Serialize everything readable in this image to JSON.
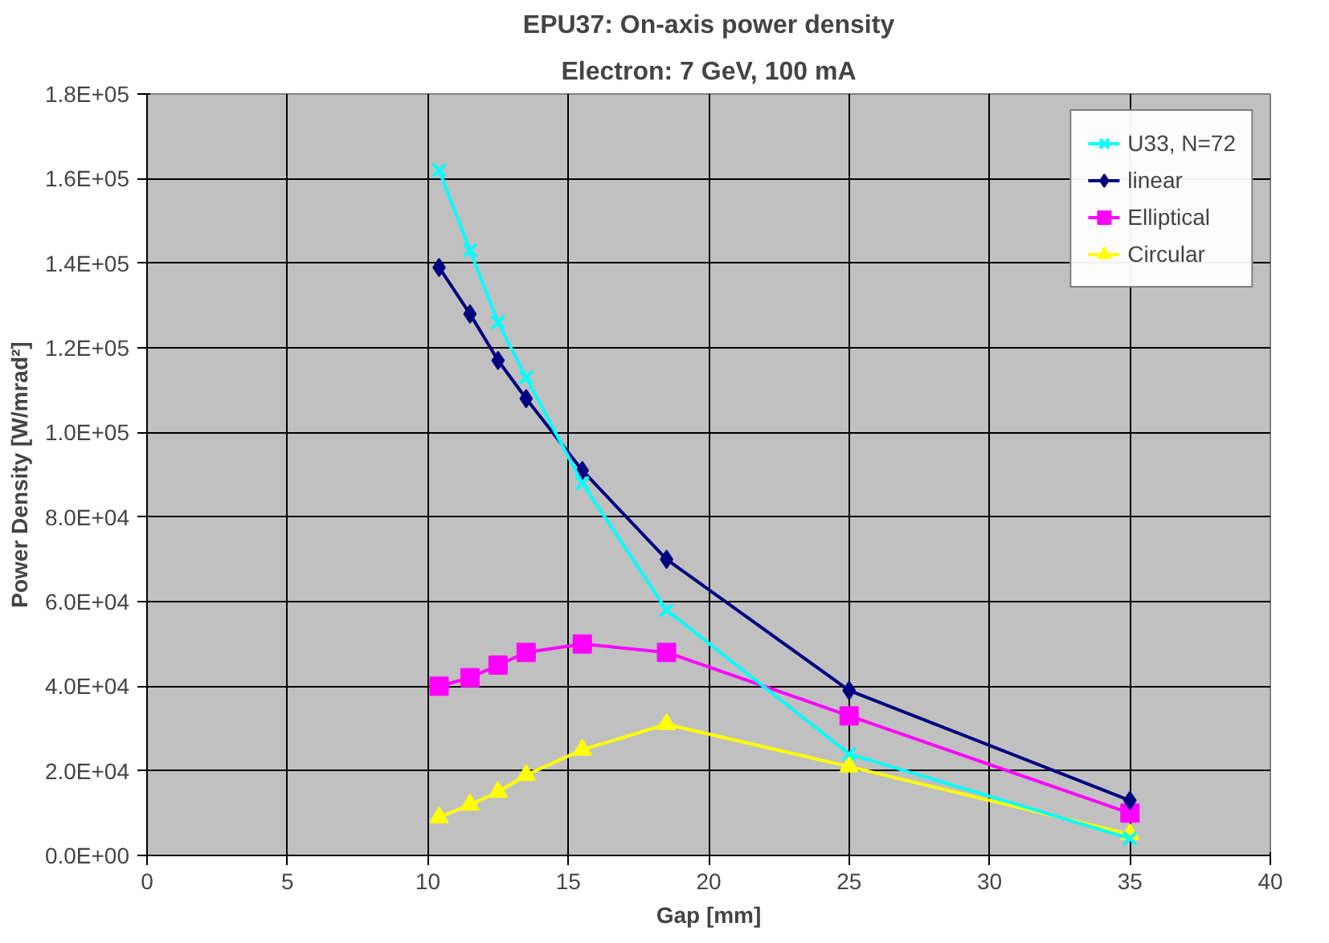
{
  "chart_data": {
    "type": "line",
    "title": "EPU37: On-axis power density",
    "subtitle": "Electron: 7 GeV, 100 mA",
    "xlabel": "Gap [mm]",
    "ylabel": "Power Density [W/mrad²]",
    "x": [
      10.4,
      11.5,
      12.5,
      13.5,
      15.5,
      18.5,
      25,
      35
    ],
    "series": [
      {
        "name": "U33, N=72",
        "color": "#00ffff",
        "marker": "cross",
        "values": [
          162000,
          143000,
          126000,
          113000,
          88000,
          58000,
          24000,
          4000
        ]
      },
      {
        "name": "linear",
        "color": "#000080",
        "marker": "diamond",
        "values": [
          139000,
          128000,
          117000,
          108000,
          91000,
          70000,
          39000,
          13000
        ]
      },
      {
        "name": "Elliptical",
        "color": "#ff00ff",
        "marker": "square",
        "values": [
          40000,
          42000,
          45000,
          48000,
          50000,
          48000,
          33000,
          10000
        ]
      },
      {
        "name": "Circular",
        "color": "#ffff00",
        "marker": "triangle",
        "values": [
          9000,
          12000,
          15000,
          19000,
          25000,
          31000,
          21000,
          5000
        ]
      }
    ],
    "xlim": [
      0,
      40
    ],
    "xticks": [
      0,
      5,
      10,
      15,
      20,
      25,
      30,
      35,
      40
    ],
    "ylim": [
      0,
      180000
    ],
    "yticks": [
      {
        "value": 0,
        "label": "0.0E+00"
      },
      {
        "value": 20000,
        "label": "2.0E+04"
      },
      {
        "value": 40000,
        "label": "4.0E+04"
      },
      {
        "value": 60000,
        "label": "6.0E+04"
      },
      {
        "value": 80000,
        "label": "8.0E+04"
      },
      {
        "value": 100000,
        "label": "1.0E+05"
      },
      {
        "value": 120000,
        "label": "1.2E+05"
      },
      {
        "value": 140000,
        "label": "1.4E+05"
      },
      {
        "value": 160000,
        "label": "1.6E+05"
      },
      {
        "value": 180000,
        "label": "1.8E+05"
      }
    ],
    "grid": true,
    "legend": "top right",
    "line_style": "solid"
  }
}
